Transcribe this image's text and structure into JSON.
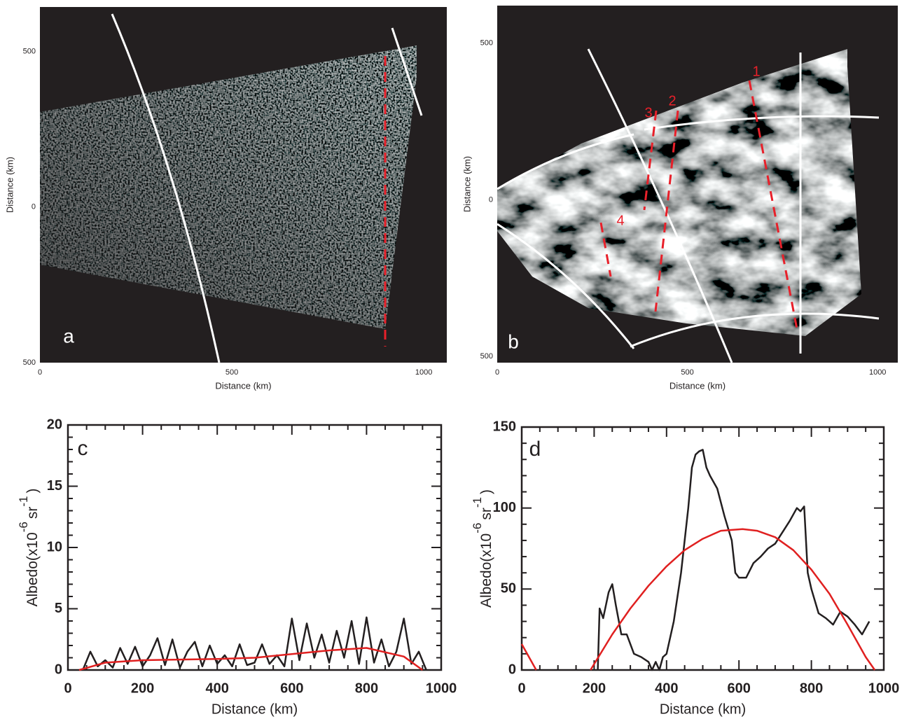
{
  "chart_data": [
    {
      "type": "image",
      "panel_label": "a",
      "xlabel": "Distance (km)",
      "ylabel": "Distance (km)",
      "xlim": [
        0,
        1060
      ],
      "ylim": [
        -500,
        643
      ],
      "xticks": [
        0,
        500,
        1000
      ],
      "yticks": [
        {
          "value": -500,
          "label": "500"
        },
        0,
        500
      ]
    },
    {
      "type": "image",
      "panel_label": "b",
      "xlabel": "Distance (km)",
      "ylabel": "Distance (km)",
      "xlim": [
        0,
        1053
      ],
      "ylim": [
        -520,
        620
      ],
      "xticks": [
        0,
        500,
        1000
      ],
      "yticks": [
        {
          "value": -500,
          "label": "500"
        },
        0,
        500
      ],
      "annotations": [
        "1",
        "2",
        "3",
        "4"
      ]
    },
    {
      "type": "line",
      "panel_label": "c",
      "xlabel": "Distance (km)",
      "ylabel": [
        "Albedo(x10",
        "-6",
        "sr",
        "-1",
        ")"
      ],
      "xlim": [
        0,
        1000
      ],
      "ylim": [
        0,
        20
      ],
      "xticks": [
        0,
        200,
        400,
        600,
        800,
        1000
      ],
      "yticks": [
        0,
        5,
        10,
        15,
        20
      ],
      "minor_ticks": [
        4,
        5
      ],
      "series": [
        {
          "color": "#231f20",
          "x": [
            40,
            60,
            80,
            100,
            120,
            140,
            160,
            180,
            200,
            220,
            240,
            260,
            280,
            300,
            320,
            340,
            360,
            380,
            400,
            420,
            440,
            460,
            480,
            500,
            520,
            540,
            560,
            580,
            600,
            620,
            640,
            660,
            680,
            700,
            720,
            740,
            760,
            780,
            800,
            820,
            840,
            860,
            880,
            900,
            920,
            940,
            960
          ],
          "values": [
            0,
            1.5,
            0.3,
            0.8,
            0.2,
            1.8,
            0.5,
            1.9,
            0.3,
            1.2,
            2.6,
            0.4,
            2.5,
            0.2,
            1.5,
            2.3,
            0.3,
            2.0,
            0.5,
            1.2,
            0.3,
            2.1,
            0.4,
            0.6,
            2.1,
            0.5,
            1.2,
            0.3,
            4.2,
            0.8,
            3.8,
            1.0,
            2.9,
            0.6,
            3.2,
            1.0,
            4.0,
            0.5,
            4.3,
            0.6,
            2.5,
            0.3,
            1.5,
            4.2,
            0.5,
            1.5,
            0
          ]
        },
        {
          "color": "#e02020",
          "x": [
            30,
            100,
            200,
            300,
            400,
            500,
            600,
            700,
            800,
            900,
            950
          ],
          "values": [
            0,
            0.6,
            0.8,
            0.85,
            0.9,
            1.0,
            1.3,
            1.6,
            1.8,
            1.1,
            0
          ]
        }
      ]
    },
    {
      "type": "line",
      "panel_label": "d",
      "xlabel": "Distance (km)",
      "ylabel": [
        "Albedo(x10",
        "-6",
        "sr",
        "-1",
        ")"
      ],
      "xlim": [
        0,
        1000
      ],
      "ylim": [
        0,
        150
      ],
      "xticks": [
        0,
        200,
        400,
        600,
        800,
        1000
      ],
      "yticks": [
        0,
        50,
        100,
        150
      ],
      "minor_ticks": [
        4,
        5
      ],
      "series": [
        {
          "color": "#231f20",
          "x": [
            210,
            215,
            225,
            240,
            250,
            260,
            275,
            290,
            310,
            330,
            350,
            360,
            370,
            380,
            390,
            400,
            420,
            440,
            460,
            470,
            480,
            490,
            500,
            510,
            520,
            540,
            560,
            580,
            590,
            600,
            620,
            640,
            660,
            680,
            700,
            720,
            740,
            760,
            770,
            780,
            790,
            800,
            820,
            840,
            850,
            860,
            880,
            900,
            920,
            940,
            960
          ],
          "values": [
            0,
            38,
            32,
            48,
            53,
            40,
            22,
            22,
            10,
            8,
            5,
            0,
            5,
            0,
            8,
            10,
            30,
            60,
            100,
            125,
            133,
            135,
            136,
            125,
            120,
            112,
            95,
            80,
            60,
            57,
            57,
            66,
            70,
            75,
            78,
            85,
            92,
            100,
            98,
            101,
            60,
            50,
            35,
            32,
            30,
            28,
            36,
            33,
            28,
            22,
            30
          ]
        },
        {
          "color": "#e02020",
          "x": [
            0,
            40,
            100,
            190,
            250,
            300,
            350,
            400,
            450,
            500,
            550,
            610,
            650,
            700,
            750,
            800,
            850,
            900,
            950,
            975
          ],
          "values": [
            16,
            0,
            null,
            0,
            22,
            38,
            52,
            64,
            74,
            81,
            86,
            87,
            86,
            82,
            74,
            62,
            47,
            28,
            8,
            0
          ]
        }
      ]
    }
  ]
}
